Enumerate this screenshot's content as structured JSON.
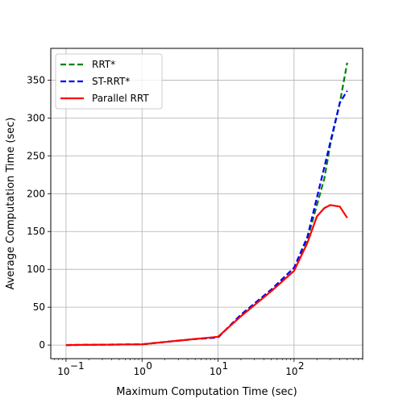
{
  "chart_data": {
    "type": "line",
    "title": "",
    "xlabel": "Maximum Computation Time (sec)",
    "ylabel": "Average Computation Time (sec)",
    "xscale": "log",
    "xlim": [
      0.063,
      800
    ],
    "ylim": [
      -18,
      392
    ],
    "grid": true,
    "legend_position": "top-left",
    "xticks": [
      {
        "value": 0.1,
        "base": "10",
        "exp": "−1"
      },
      {
        "value": 1,
        "base": "10",
        "exp": "0"
      },
      {
        "value": 10,
        "base": "10",
        "exp": "1"
      },
      {
        "value": 100,
        "base": "10",
        "exp": "2"
      }
    ],
    "yticks": [
      0,
      50,
      100,
      150,
      200,
      250,
      300,
      350
    ],
    "series": [
      {
        "name": "RRT*",
        "color": "#008000",
        "dash": "dashed",
        "x": [
          0.1,
          1,
          2,
          5,
          10,
          20,
          50,
          100,
          150,
          200,
          250,
          300,
          400,
          500
        ],
        "y": [
          0,
          1,
          4,
          8,
          10,
          40,
          73,
          102,
          140,
          185,
          220,
          265,
          320,
          373
        ]
      },
      {
        "name": "ST-RRT*",
        "color": "#0000ff",
        "dash": "dashed",
        "x": [
          0.1,
          1,
          2,
          5,
          10,
          20,
          50,
          100,
          150,
          200,
          250,
          300,
          400,
          500
        ],
        "y": [
          0,
          1,
          4,
          8,
          10,
          40,
          73,
          102,
          143,
          195,
          235,
          268,
          320,
          336
        ]
      },
      {
        "name": "Parallel RRT",
        "color": "#ff0000",
        "dash": "solid",
        "x": [
          0.1,
          1,
          2,
          5,
          10,
          20,
          50,
          100,
          150,
          200,
          250,
          300,
          400,
          500
        ],
        "y": [
          0,
          1,
          4,
          8,
          11,
          38,
          71,
          98,
          135,
          170,
          181,
          185,
          183,
          168
        ]
      }
    ]
  }
}
